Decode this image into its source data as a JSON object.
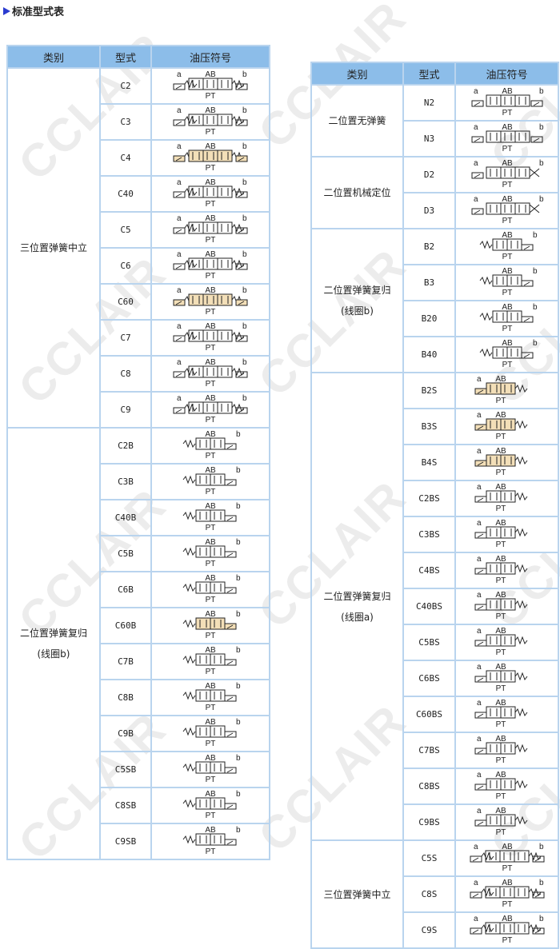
{
  "title": "标准型式表",
  "watermark": "CCLAIR",
  "headers": [
    "类别",
    "型式",
    "油压符号"
  ],
  "symbol_labels": {
    "a": "a",
    "b": "b",
    "ab": "AB",
    "pt": "PT"
  },
  "left_table": {
    "groups": [
      {
        "category": "三位置弹簧中立",
        "category_line2": "",
        "rows": [
          {
            "model": "C2",
            "symbol": "3pos"
          },
          {
            "model": "C3",
            "symbol": "3pos"
          },
          {
            "model": "C4",
            "symbol": "3pos",
            "highlight": true
          },
          {
            "model": "C40",
            "symbol": "3pos"
          },
          {
            "model": "C5",
            "symbol": "3pos"
          },
          {
            "model": "C6",
            "symbol": "3pos"
          },
          {
            "model": "C60",
            "symbol": "3pos",
            "highlight": true
          },
          {
            "model": "C7",
            "symbol": "3pos"
          },
          {
            "model": "C8",
            "symbol": "3pos"
          },
          {
            "model": "C9",
            "symbol": "3pos"
          }
        ]
      },
      {
        "category": "二位置弹簧复归",
        "category_line2": "(线圈b)",
        "rows": [
          {
            "model": "C2B",
            "symbol": "2pos-b"
          },
          {
            "model": "C3B",
            "symbol": "2pos-b"
          },
          {
            "model": "C40B",
            "symbol": "2pos-b"
          },
          {
            "model": "C5B",
            "symbol": "2pos-b"
          },
          {
            "model": "C6B",
            "symbol": "2pos-b"
          },
          {
            "model": "C60B",
            "symbol": "2pos-b",
            "highlight": true
          },
          {
            "model": "C7B",
            "symbol": "2pos-b"
          },
          {
            "model": "C8B",
            "symbol": "2pos-b"
          },
          {
            "model": "C9B",
            "symbol": "2pos-b"
          },
          {
            "model": "C5SB",
            "symbol": "2pos-b"
          },
          {
            "model": "C8SB",
            "symbol": "2pos-b"
          },
          {
            "model": "C9SB",
            "symbol": "2pos-b"
          }
        ]
      }
    ]
  },
  "right_table": {
    "groups": [
      {
        "category": "二位置无弹簧",
        "category_line2": "",
        "rows": [
          {
            "model": "N2",
            "symbol": "2sol"
          },
          {
            "model": "N3",
            "symbol": "2sol"
          }
        ]
      },
      {
        "category": "二位置机械定位",
        "category_line2": "",
        "rows": [
          {
            "model": "D2",
            "symbol": "2det"
          },
          {
            "model": "D3",
            "symbol": "2det"
          }
        ]
      },
      {
        "category": "二位置弹簧复归",
        "category_line2": "(线圈b)",
        "rows": [
          {
            "model": "B2",
            "symbol": "2pos-b"
          },
          {
            "model": "B3",
            "symbol": "2pos-b"
          },
          {
            "model": "B20",
            "symbol": "2pos-b"
          },
          {
            "model": "B40",
            "symbol": "2pos-b"
          }
        ]
      },
      {
        "category": "二位置弹簧复归",
        "category_line2": "(线圈a)",
        "rows": [
          {
            "model": "B2S",
            "symbol": "2pos-a",
            "highlight": true
          },
          {
            "model": "B3S",
            "symbol": "2pos-a",
            "highlight": true
          },
          {
            "model": "B4S",
            "symbol": "2pos-a",
            "highlight": true
          },
          {
            "model": "C2BS",
            "symbol": "2pos-a"
          },
          {
            "model": "C3BS",
            "symbol": "2pos-a"
          },
          {
            "model": "C4BS",
            "symbol": "2pos-a"
          },
          {
            "model": "C40BS",
            "symbol": "2pos-a"
          },
          {
            "model": "C5BS",
            "symbol": "2pos-a"
          },
          {
            "model": "C6BS",
            "symbol": "2pos-a"
          },
          {
            "model": "C60BS",
            "symbol": "2pos-a"
          },
          {
            "model": "C7BS",
            "symbol": "2pos-a"
          },
          {
            "model": "C8BS",
            "symbol": "2pos-a"
          },
          {
            "model": "C9BS",
            "symbol": "2pos-a"
          }
        ]
      },
      {
        "category": "三位置弹簧中立",
        "category_line2": "",
        "rows": [
          {
            "model": "C5S",
            "symbol": "3pos"
          },
          {
            "model": "C8S",
            "symbol": "3pos"
          },
          {
            "model": "C9S",
            "symbol": "3pos"
          }
        ]
      }
    ]
  },
  "colors": {
    "header_bg": "#8cbde9",
    "border": "#b9d4ee",
    "highlight": "#f3dfb8"
  }
}
